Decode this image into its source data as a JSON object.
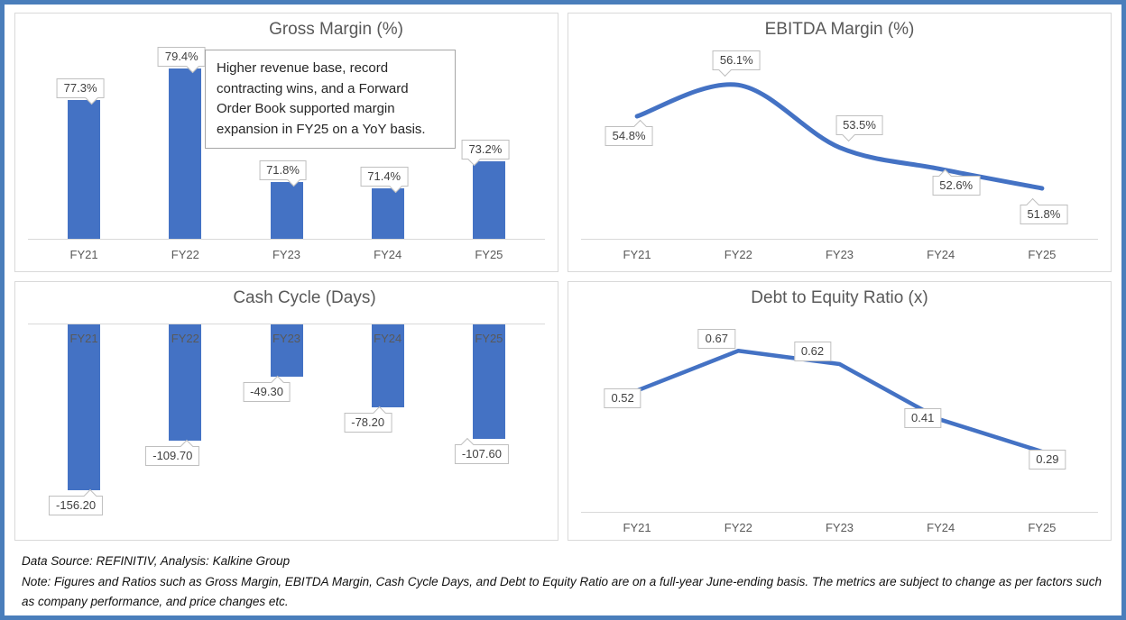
{
  "colors": {
    "accent_blue": "#4472C4",
    "frame_border": "#4A7EBB",
    "panel_border": "#D9D9D9",
    "axis_line": "#D9D9D9",
    "title_text": "#595959",
    "category_text": "#595959",
    "label_text": "#404040",
    "callout_border": "#BFBFBF",
    "annotation_border": "#A6A6A6",
    "annotation_text": "#262626",
    "footer_text": "#111111",
    "background": "#FFFFFF"
  },
  "footer": {
    "source": "Data Source: REFINITIV, Analysis: Kalkine Group",
    "note": "Note: Figures and Ratios such as Gross Margin, EBITDA Margin, Cash Cycle Days, and Debt to Equity Ratio are on a full-year June-ending basis. The metrics are subject to change as per factors such as company performance, and price changes etc."
  },
  "chart_data": [
    {
      "id": "gross-margin",
      "type": "bar",
      "title": "Gross Margin (%)",
      "categories": [
        "FY21",
        "FY22",
        "FY23",
        "FY24",
        "FY25"
      ],
      "values": [
        77.3,
        79.4,
        71.8,
        71.4,
        73.2
      ],
      "labels": [
        "77.3%",
        "79.4%",
        "71.8%",
        "71.4%",
        "73.2%"
      ],
      "ylim": [
        68,
        81
      ],
      "grid": false,
      "legend": false,
      "color": "#4472C4",
      "annotation": "Higher revenue base, record contracting wins, and a Forward Order Book supported margin expansion in FY25 on a YoY basis."
    },
    {
      "id": "ebitda-margin",
      "type": "line",
      "title": "EBITDA Margin (%)",
      "categories": [
        "FY21",
        "FY22",
        "FY23",
        "FY24",
        "FY25"
      ],
      "values": [
        54.8,
        56.1,
        53.5,
        52.6,
        51.8
      ],
      "labels": [
        "54.8%",
        "56.1%",
        "53.5%",
        "52.6%",
        "51.8%"
      ],
      "ylim": [
        50,
        57.5
      ],
      "smooth": true,
      "grid": false,
      "legend": false,
      "color": "#4472C4"
    },
    {
      "id": "cash-cycle",
      "type": "bar",
      "title": "Cash Cycle (Days)",
      "categories": [
        "FY21",
        "FY22",
        "FY23",
        "FY24",
        "FY25"
      ],
      "values": [
        -156.2,
        -109.7,
        -49.3,
        -78.2,
        -107.6
      ],
      "labels": [
        "-156.20",
        "-109.70",
        "-49.30",
        "-78.20",
        "-107.60"
      ],
      "ylim": [
        -170,
        0
      ],
      "axis_position": "top",
      "category_label_position": "inside-bars",
      "grid": false,
      "legend": false,
      "color": "#4472C4"
    },
    {
      "id": "debt-to-equity",
      "type": "line",
      "title": "Debt to Equity Ratio (x)",
      "categories": [
        "FY21",
        "FY22",
        "FY23",
        "FY24",
        "FY25"
      ],
      "values": [
        0.52,
        0.67,
        0.62,
        0.41,
        0.29
      ],
      "labels": [
        "0.52",
        "0.67",
        "0.62",
        "0.41",
        "0.29"
      ],
      "ylim": [
        0.08,
        0.8
      ],
      "smooth": false,
      "grid": false,
      "legend": false,
      "color": "#4472C4"
    }
  ]
}
